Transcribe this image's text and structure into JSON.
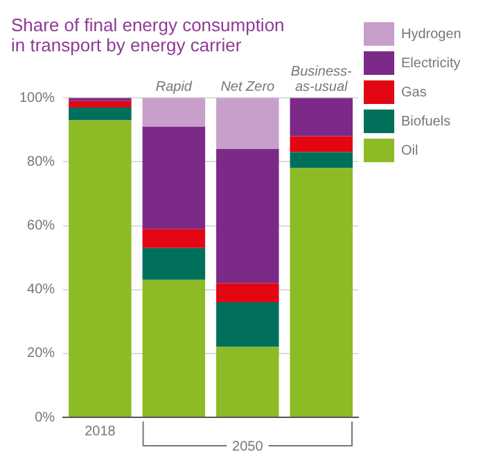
{
  "chart_data": {
    "type": "bar",
    "title": "Share of final energy consumption\nin transport by energy carrier",
    "categories": [
      "2018",
      "Rapid",
      "Net Zero",
      "Business-as-usual"
    ],
    "stacked": true,
    "series": [
      {
        "name": "Oil",
        "color": "#8cbb26",
        "values": [
          93,
          43,
          22,
          78
        ]
      },
      {
        "name": "Biofuels",
        "color": "#00705a",
        "values": [
          4,
          10,
          14,
          5
        ]
      },
      {
        "name": "Gas",
        "color": "#e30613",
        "values": [
          2,
          6,
          6,
          5
        ]
      },
      {
        "name": "Electricity",
        "color": "#7b2a87",
        "values": [
          1,
          32,
          42,
          12
        ]
      },
      {
        "name": "Hydrogen",
        "color": "#c89fcb",
        "values": [
          0,
          9,
          16,
          0
        ]
      }
    ],
    "ylim": [
      0,
      100
    ],
    "yticks": [
      {
        "value": 0,
        "label": "0%"
      },
      {
        "value": 20,
        "label": "20%"
      },
      {
        "value": 40,
        "label": "40%"
      },
      {
        "value": 60,
        "label": "60%"
      },
      {
        "value": 80,
        "label": "80%"
      },
      {
        "value": 100,
        "label": "100%"
      }
    ],
    "grid": "y",
    "legend": "right",
    "annotations": [
      "2050"
    ]
  }
}
